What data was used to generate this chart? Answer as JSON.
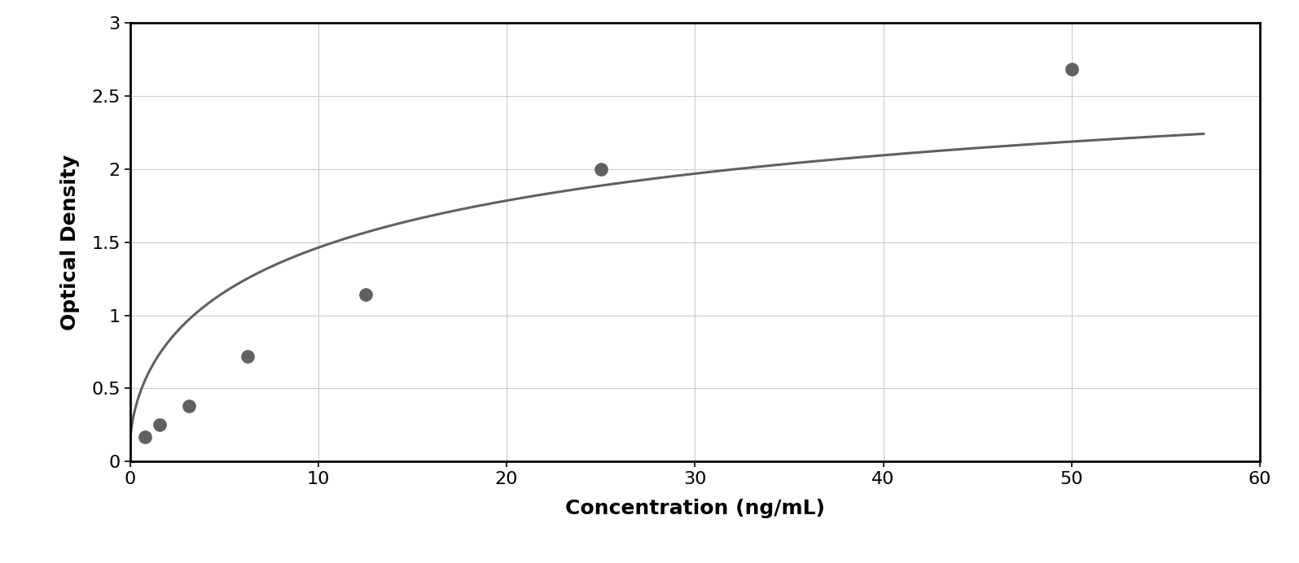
{
  "x_data": [
    0.78,
    1.56,
    3.13,
    6.25,
    12.5,
    25.0,
    50.0
  ],
  "y_data": [
    0.17,
    0.25,
    0.38,
    0.72,
    1.14,
    2.0,
    2.68
  ],
  "xlabel": "Concentration (ng/mL)",
  "ylabel": "Optical Density",
  "xlim": [
    0,
    60
  ],
  "ylim": [
    0,
    3
  ],
  "xticks": [
    0,
    10,
    20,
    30,
    40,
    50,
    60
  ],
  "yticks": [
    0,
    0.5,
    1.0,
    1.5,
    2.0,
    2.5,
    3.0
  ],
  "data_color": "#606060",
  "line_color": "#606060",
  "background_color": "#ffffff",
  "outer_background": "#ffffff",
  "grid_color": "#cccccc",
  "marker_size": 11,
  "line_width": 2.2,
  "xlabel_fontsize": 18,
  "ylabel_fontsize": 18,
  "tick_fontsize": 16,
  "xlabel_fontweight": "bold",
  "ylabel_fontweight": "bold"
}
